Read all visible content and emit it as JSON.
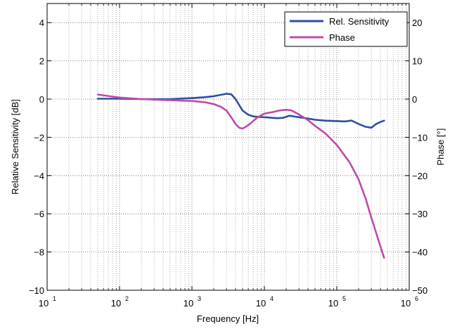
{
  "chart_data": {
    "type": "line",
    "xlabel": "Frequency [Hz]",
    "ylabel_left": "Relative Sensitivity [dB]",
    "ylabel_right": "Phase [°]",
    "x_scale": "log",
    "xlim": [
      10,
      1000000
    ],
    "ylim_left": [
      -10,
      5
    ],
    "ylim_right": [
      -50,
      25
    ],
    "grid": true,
    "legend_position": "top-right",
    "x_ticks": [
      {
        "value": 10,
        "base": "10",
        "exp": "1"
      },
      {
        "value": 100,
        "base": "10",
        "exp": "2"
      },
      {
        "value": 1000,
        "base": "10",
        "exp": "3"
      },
      {
        "value": 10000,
        "base": "10",
        "exp": "4"
      },
      {
        "value": 100000,
        "base": "10",
        "exp": "5"
      },
      {
        "value": 1000000,
        "base": "10",
        "exp": "6"
      }
    ],
    "y_ticks_left": [
      {
        "value": 4,
        "label": "4"
      },
      {
        "value": 2,
        "label": "2"
      },
      {
        "value": 0,
        "label": "0"
      },
      {
        "value": -2,
        "label": "−2"
      },
      {
        "value": -4,
        "label": "−4"
      },
      {
        "value": -6,
        "label": "−6"
      },
      {
        "value": -8,
        "label": "−8"
      },
      {
        "value": -10,
        "label": "−10"
      }
    ],
    "y_ticks_right": [
      {
        "value": 20,
        "label": "20"
      },
      {
        "value": 10,
        "label": "10"
      },
      {
        "value": 0,
        "label": "0"
      },
      {
        "value": -10,
        "label": "−10"
      },
      {
        "value": -20,
        "label": "−20"
      },
      {
        "value": -30,
        "label": "−30"
      },
      {
        "value": -40,
        "label": "−40"
      },
      {
        "value": -50,
        "label": "−50"
      }
    ],
    "series": [
      {
        "name": "Rel. Sensitivity",
        "axis": "left",
        "color": "#2f4ea1",
        "x": [
          50,
          100,
          200,
          500,
          1000,
          1500,
          2000,
          2500,
          3000,
          3500,
          4000,
          5000,
          6000,
          7000,
          8000,
          10000,
          12000,
          15000,
          18000,
          20000,
          22000,
          25000,
          30000,
          40000,
          50000,
          70000,
          100000,
          130000,
          160000,
          200000,
          250000,
          300000,
          350000,
          400000,
          450000
        ],
        "values": [
          0.02,
          0.02,
          0.0,
          0.0,
          0.05,
          0.1,
          0.15,
          0.22,
          0.28,
          0.25,
          0.0,
          -0.6,
          -0.82,
          -0.9,
          -0.93,
          -0.95,
          -0.97,
          -1.0,
          -0.98,
          -0.93,
          -0.87,
          -0.9,
          -0.95,
          -1.02,
          -1.08,
          -1.13,
          -1.15,
          -1.17,
          -1.12,
          -1.3,
          -1.45,
          -1.5,
          -1.3,
          -1.2,
          -1.13
        ]
      },
      {
        "name": "Phase",
        "axis": "right",
        "color": "#c04aa8",
        "x": [
          50,
          70,
          100,
          200,
          500,
          1000,
          1500,
          2000,
          2500,
          3000,
          3500,
          4000,
          4500,
          5000,
          5500,
          6500,
          8000,
          10000,
          13000,
          16000,
          20000,
          23000,
          25000,
          30000,
          40000,
          50000,
          70000,
          100000,
          150000,
          200000,
          250000,
          300000,
          350000,
          400000,
          450000
        ],
        "values": [
          1.2,
          0.8,
          0.4,
          0.0,
          -0.3,
          -0.5,
          -0.8,
          -1.3,
          -2.0,
          -3.0,
          -4.8,
          -6.5,
          -7.5,
          -7.7,
          -7.3,
          -6.3,
          -4.8,
          -3.8,
          -3.4,
          -3.0,
          -2.8,
          -2.9,
          -3.2,
          -4.0,
          -5.5,
          -7.0,
          -9.0,
          -12.0,
          -16.5,
          -21.0,
          -26.0,
          -31.0,
          -35.0,
          -38.5,
          -41.5
        ]
      }
    ]
  }
}
